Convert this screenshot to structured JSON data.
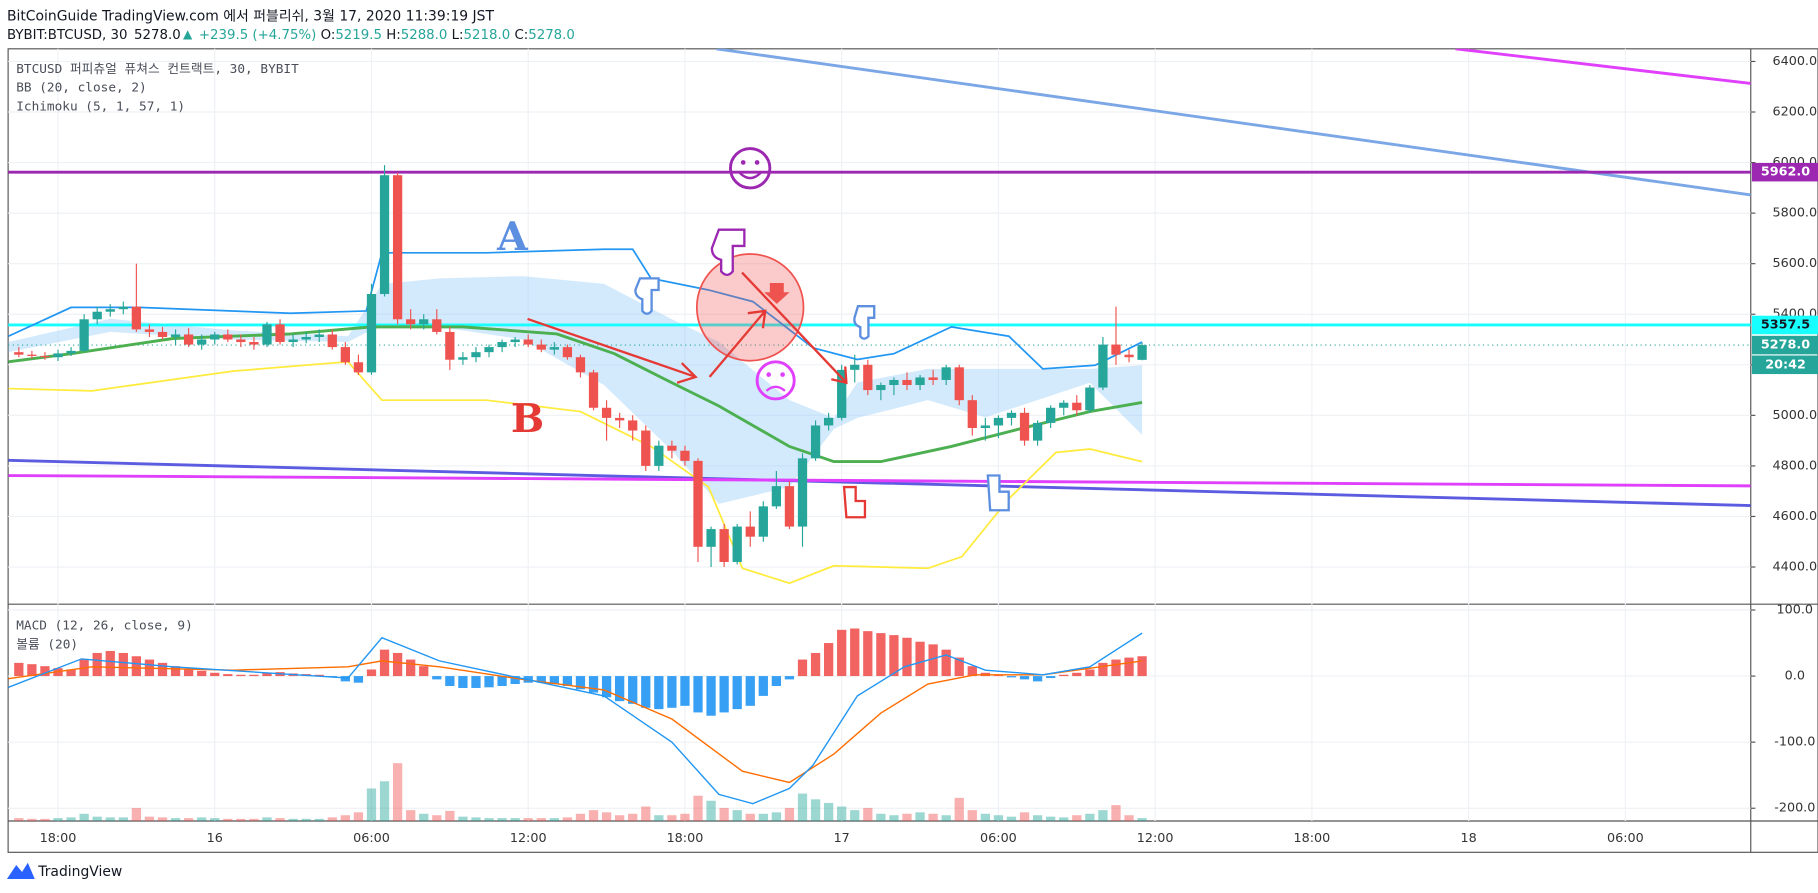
{
  "header": {
    "title": "BitCoinGuide TradingView.com 에서 퍼블리쉬, 3월 17, 2020 11:39:19 JST",
    "quote": {
      "symbol": "BYBIT:BTCUSD, 30",
      "last": "5278.0",
      "change": "+239.5 (+4.75%)",
      "ohlc": [
        {
          "label": "O:",
          "value": "5219.5"
        },
        {
          "label": "H:",
          "value": "5288.0"
        },
        {
          "label": "L:",
          "value": "5218.0"
        },
        {
          "label": "C:",
          "value": "5278.0"
        }
      ]
    }
  },
  "footer": {
    "logo": "TradingView"
  },
  "chart_data": [
    {
      "type": "candlestick",
      "legend": [
        "BTCUSD 퍼피츄얼 퓨쳐스 컨트랙트, 30, BYBIT",
        "BB (20, close, 2)",
        "Ichimoku (5, 1, 57, 1)"
      ],
      "x": [
        16.5,
        17,
        17.5,
        18,
        18.5,
        19,
        19.5,
        20,
        20.5,
        21,
        21.5,
        22,
        22.5,
        23,
        23.5,
        24,
        24.5,
        25,
        25.5,
        26,
        26.5,
        27,
        27.5,
        28,
        28.5,
        29,
        29.5,
        30,
        30.5,
        31,
        31.5,
        32,
        32.5,
        33,
        33.5,
        34,
        34.5,
        35,
        35.5,
        36,
        36.5,
        37,
        37.5,
        38,
        38.5,
        39,
        39.5,
        40,
        40.5,
        41,
        41.5,
        42,
        42.5,
        43,
        43.5,
        44,
        44.5,
        45,
        45.5,
        46,
        46.5,
        47,
        47.5,
        48,
        48.5,
        49,
        49.5,
        50,
        50.5,
        51,
        51.5,
        52,
        52.5,
        53,
        53.5,
        54,
        54.5,
        55,
        55.5,
        56,
        56.5,
        57,
        57.5,
        58,
        58.5,
        59,
        59.5
      ],
      "open": [
        5250,
        5240,
        5235,
        5230,
        5245,
        5255,
        5380,
        5410,
        5420,
        5430,
        5340,
        5330,
        5310,
        5320,
        5280,
        5300,
        5320,
        5300,
        5290,
        5280,
        5360,
        5290,
        5300,
        5310,
        5320,
        5270,
        5210,
        5170,
        5480,
        5950,
        5380,
        5360,
        5380,
        5330,
        5220,
        5230,
        5250,
        5270,
        5290,
        5300,
        5280,
        5260,
        5270,
        5230,
        5170,
        5030,
        4990,
        4980,
        4940,
        4800,
        4880,
        4860,
        4820,
        4480,
        4550,
        4420,
        4560,
        4520,
        4640,
        4720,
        4560,
        4830,
        4960,
        4990,
        5180,
        5200,
        5100,
        5120,
        5140,
        5120,
        5150,
        5140,
        5190,
        5060,
        4950,
        4960,
        4990,
        5010,
        4900,
        4970,
        5030,
        5050,
        5020,
        5110,
        5280,
        5240,
        5219.5
      ],
      "high": [
        5270,
        5255,
        5250,
        5260,
        5270,
        5400,
        5430,
        5440,
        5450,
        5600,
        5360,
        5350,
        5340,
        5345,
        5320,
        5330,
        5340,
        5320,
        5310,
        5370,
        5380,
        5320,
        5330,
        5340,
        5340,
        5290,
        5240,
        5520,
        5990,
        5960,
        5420,
        5400,
        5420,
        5350,
        5250,
        5270,
        5280,
        5300,
        5310,
        5320,
        5300,
        5290,
        5280,
        5240,
        5180,
        5060,
        5010,
        5000,
        4960,
        4900,
        4900,
        4880,
        4830,
        4560,
        4570,
        4570,
        4620,
        4660,
        4780,
        4740,
        4850,
        4980,
        5010,
        5200,
        5240,
        5220,
        5130,
        5150,
        5170,
        5160,
        5180,
        5200,
        5200,
        5080,
        4990,
        5000,
        5020,
        5030,
        4980,
        5040,
        5060,
        5080,
        5120,
        5310,
        5430,
        5260,
        5288
      ],
      "low": [
        5230,
        5225,
        5220,
        5215,
        5235,
        5250,
        5360,
        5390,
        5400,
        5330,
        5310,
        5300,
        5280,
        5270,
        5260,
        5280,
        5290,
        5270,
        5260,
        5270,
        5280,
        5270,
        5285,
        5290,
        5260,
        5200,
        5160,
        5160,
        5470,
        5360,
        5340,
        5340,
        5320,
        5180,
        5200,
        5210,
        5230,
        5250,
        5270,
        5270,
        5250,
        5240,
        5220,
        5150,
        5020,
        4900,
        4950,
        4900,
        4780,
        4780,
        4830,
        4800,
        4420,
        4400,
        4400,
        4410,
        4480,
        4500,
        4630,
        4550,
        4480,
        4820,
        4940,
        4980,
        5130,
        5080,
        5060,
        5080,
        5100,
        5100,
        5120,
        5120,
        5040,
        4920,
        4900,
        4910,
        4960,
        4880,
        4880,
        4950,
        5000,
        5000,
        5010,
        5100,
        5200,
        5210,
        5218
      ],
      "close": [
        5240,
        5235,
        5230,
        5245,
        5255,
        5380,
        5410,
        5420,
        5430,
        5340,
        5330,
        5310,
        5320,
        5280,
        5300,
        5320,
        5300,
        5290,
        5280,
        5360,
        5290,
        5300,
        5310,
        5320,
        5270,
        5210,
        5170,
        5480,
        5950,
        5380,
        5360,
        5380,
        5330,
        5220,
        5230,
        5250,
        5270,
        5290,
        5300,
        5280,
        5260,
        5270,
        5230,
        5170,
        5030,
        4990,
        4980,
        4940,
        4800,
        4880,
        4860,
        4820,
        4480,
        4550,
        4420,
        4560,
        4520,
        4640,
        4720,
        4560,
        4830,
        4960,
        4990,
        5180,
        5200,
        5100,
        5120,
        5140,
        5120,
        5150,
        5140,
        5190,
        5060,
        4950,
        4960,
        4990,
        5010,
        4900,
        4970,
        5030,
        5050,
        5020,
        5110,
        5280,
        5240,
        5230,
        5278
      ],
      "up_color": "#26a69a",
      "down_color": "#ef5350",
      "xlim": [
        16.09,
        82.8
      ],
      "xticks": [
        {
          "value": 18,
          "label": "18:00"
        },
        {
          "value": 24,
          "label": "16"
        },
        {
          "value": 30,
          "label": "06:00"
        },
        {
          "value": 36,
          "label": "12:00"
        },
        {
          "value": 42,
          "label": "18:00"
        },
        {
          "value": 48,
          "label": "17"
        },
        {
          "value": 54,
          "label": "06:00"
        },
        {
          "value": 60,
          "label": "12:00"
        },
        {
          "value": 66,
          "label": "18:00"
        },
        {
          "value": 72,
          "label": "18"
        },
        {
          "value": 78,
          "label": "06:00"
        }
      ],
      "ylim": [
        4253,
        6450
      ],
      "yticks": [
        {
          "value": 4400,
          "label": "4400.0"
        },
        {
          "value": 4600,
          "label": "4600.0"
        },
        {
          "value": 4800,
          "label": "4800.0"
        },
        {
          "value": 5000,
          "label": "5000.0"
        },
        {
          "value": 5200,
          "label": "5200.0"
        },
        {
          "value": 5400,
          "label": "5400.0"
        },
        {
          "value": 5600,
          "label": "5600.0"
        },
        {
          "value": 5800,
          "label": "5800.0"
        },
        {
          "value": 6000,
          "label": "6000.0"
        },
        {
          "value": 6200,
          "label": "6200.0"
        },
        {
          "value": 6400,
          "label": "6400.0"
        }
      ],
      "grid": true,
      "cloud": {
        "x": [
          16.1,
          20,
          24.7,
          29.1,
          30.4,
          32.6,
          35.8,
          38.9,
          41.5,
          43.3,
          46.0,
          47.7,
          48.6,
          51.3,
          53.5,
          57.5,
          59.5
        ],
        "span_a": [
          5290,
          5382,
          5336,
          5313,
          5519,
          5542,
          5551,
          5520,
          5380,
          5290,
          5060,
          4990,
          5130,
          5184,
          5184,
          5184,
          5198
        ],
        "span_b": [
          5250,
          5330,
          5300,
          5290,
          5359,
          5350,
          5300,
          5120,
          4860,
          4650,
          4717,
          4946,
          4990,
          5060,
          4992,
          5129,
          4923
        ],
        "color": "#90caf9"
      },
      "bb": {
        "middle": {
          "x": [
            16.1,
            18.5,
            22.4,
            26.9,
            30,
            33.5,
            37.1,
            39.3,
            41.5,
            43.3,
            46,
            47.7,
            49.5,
            52.2,
            54.8,
            57.5,
            59.5
          ],
          "values": [
            5212,
            5244,
            5304,
            5322,
            5350,
            5350,
            5322,
            5244,
            5129,
            5037,
            4877,
            4817,
            4817,
            4877,
            4946,
            5015,
            5051
          ],
          "color": "#4caf50"
        },
        "upper": {
          "x": [
            16.1,
            18.5,
            21.1,
            26.9,
            29.8,
            30.4,
            34.4,
            38.9,
            40,
            40.7,
            42.9,
            44.6,
            46.9,
            48.6,
            50,
            52.2,
            54.4,
            55.7,
            57.7,
            59.5
          ],
          "values": [
            5313,
            5427,
            5427,
            5404,
            5413,
            5643,
            5643,
            5657,
            5657,
            5542,
            5496,
            5450,
            5267,
            5221,
            5244,
            5350,
            5313,
            5184,
            5198,
            5290
          ],
          "color": "#2196f3"
        },
        "lower": {
          "x": [
            16.1,
            19.3,
            24.7,
            29.1,
            30.4,
            34.4,
            38,
            40.7,
            42.9,
            44.2,
            46,
            47.7,
            51.3,
            52.6,
            54.4,
            56.2,
            57.5,
            59.5
          ],
          "values": [
            5106,
            5097,
            5175,
            5212,
            5060,
            5060,
            5015,
            4877,
            4717,
            4395,
            4336,
            4405,
            4395,
            4441,
            4670,
            4853,
            4867,
            4817
          ],
          "color": "#ffeb3b"
        }
      },
      "levels": [
        {
          "value": 5962,
          "label": "5962.0",
          "color": "#9c27b0"
        },
        {
          "value": 5357.5,
          "label": "5357.5",
          "color": "#18ffff"
        },
        {
          "value": 5278,
          "label": "5278.0",
          "color": "#26a69a"
        }
      ],
      "countdown": "20:42",
      "trendlines": [
        {
          "x": [
            43.2,
            82.8
          ],
          "values": [
            6450,
            5872
          ],
          "color": "#7ba7e6"
        },
        {
          "x": [
            71.5,
            82.8
          ],
          "values": [
            6450,
            6313
          ],
          "color": "#e040fb"
        },
        {
          "x": [
            16.1,
            82.8
          ],
          "values": [
            4822,
            4643
          ],
          "color": "#5c5ce0"
        },
        {
          "x": [
            16.1,
            82.8
          ],
          "values": [
            4762,
            4721
          ],
          "color": "#e040fb"
        }
      ],
      "annotations": [
        "A",
        "B"
      ]
    },
    {
      "type": "macd",
      "legend": [
        "MACD (12, 26, close, 9)",
        "볼륨 (20)"
      ],
      "histogram": [
        20,
        18,
        15,
        12,
        10,
        25,
        35,
        38,
        35,
        30,
        25,
        20,
        15,
        10,
        8,
        5,
        3,
        2,
        2,
        5,
        6,
        4,
        3,
        2,
        -2,
        -8,
        -10,
        10,
        40,
        35,
        25,
        15,
        -5,
        -15,
        -18,
        -18,
        -17,
        -15,
        -12,
        -10,
        -10,
        -12,
        -15,
        -20,
        -25,
        -32,
        -38,
        -42,
        -48,
        -50,
        -48,
        -45,
        -55,
        -60,
        -55,
        -50,
        -45,
        -30,
        -15,
        -5,
        25,
        35,
        50,
        70,
        72,
        68,
        65,
        62,
        58,
        52,
        48,
        40,
        28,
        15,
        5,
        2,
        -2,
        -5,
        -8,
        -3,
        2,
        5,
        10,
        20,
        25,
        28,
        30
      ],
      "pos_color": "#ef5350",
      "neg_color": "#2196f3",
      "macd": {
        "x": [
          16.1,
          18.9,
          22.4,
          29.1,
          30.4,
          32.6,
          35.8,
          38.9,
          41.5,
          43.3,
          44.6,
          46.0,
          46.9,
          48.6,
          50.4,
          52.0,
          53.5,
          55.7,
          57.5,
          59.5
        ],
        "values": [
          -17,
          26,
          14,
          -3,
          58,
          23,
          -4,
          -30,
          -100,
          -179,
          -193,
          -170,
          -135,
          -30,
          14,
          32,
          9,
          2,
          14,
          65
        ],
        "color": "#2196f3"
      },
      "signal": {
        "x": [
          16.1,
          19.3,
          24.7,
          29.1,
          30.4,
          32.6,
          35.8,
          38.9,
          41.5,
          44.2,
          46.0,
          47.7,
          49.5,
          51.3,
          53.1,
          55.7,
          59.5
        ],
        "values": [
          -4,
          14,
          9,
          14,
          23,
          14,
          -5,
          -21,
          -65,
          -144,
          -161,
          -118,
          -56,
          -12,
          2,
          2,
          23
        ],
        "color": "#ff6d00"
      },
      "volume": {
        "values": [
          4,
          3,
          3,
          4,
          5,
          10,
          6,
          5,
          5,
          18,
          6,
          5,
          4,
          4,
          5,
          4,
          3,
          3,
          3,
          5,
          4,
          3,
          3,
          3,
          5,
          8,
          12,
          45,
          55,
          80,
          15,
          10,
          8,
          14,
          6,
          5,
          4,
          4,
          4,
          4,
          4,
          4,
          5,
          10,
          15,
          12,
          8,
          10,
          20,
          8,
          8,
          10,
          35,
          28,
          18,
          15,
          10,
          10,
          12,
          18,
          38,
          30,
          25,
          20,
          15,
          18,
          10,
          8,
          10,
          12,
          10,
          8,
          32,
          15,
          10,
          8,
          6,
          12,
          8,
          6,
          5,
          8,
          10,
          15,
          22,
          8,
          4
        ],
        "ylim": [
          0,
          300
        ]
      },
      "ylim": [
        -219.3,
        108.8
      ],
      "yticks": [
        {
          "value": 100,
          "label": "100.0"
        },
        {
          "value": 0,
          "label": "0.0"
        },
        {
          "value": -100,
          "label": "-100.0"
        },
        {
          "value": -200,
          "label": "-200.0"
        }
      ]
    }
  ]
}
